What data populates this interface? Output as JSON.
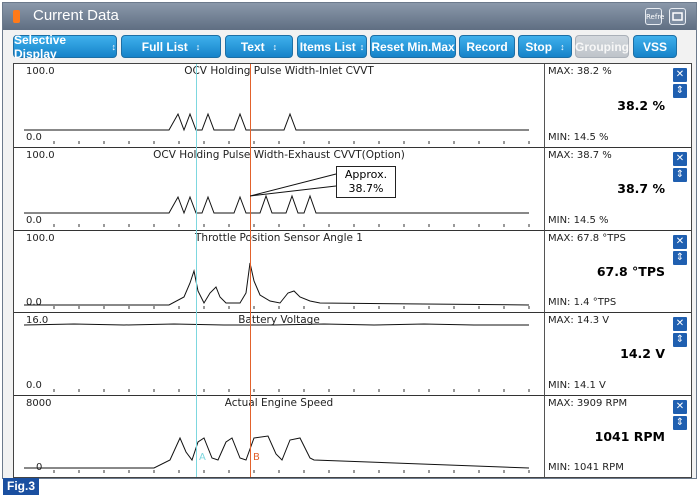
{
  "window": {
    "title": "Current Data",
    "refresh_badge": "Refre",
    "colors": {
      "titlebar": "#6e7d91",
      "button": "#1a8ad6",
      "disabled": "#c5c9ce",
      "cursor_a": "#7dd7df",
      "cursor_b": "#e2622c"
    }
  },
  "toolbar": {
    "selective_display": "Selective Display",
    "full_list": "Full List",
    "text": "Text",
    "items_list": "Items List",
    "reset_minmax": "Reset Min.Max",
    "record": "Record",
    "stop": "Stop",
    "grouping": "Grouping",
    "vss": "VSS"
  },
  "graphs": [
    {
      "title": "OCV Holding Pulse Width-Inlet CVVT",
      "ymax": "100.0",
      "ymin": "0.0",
      "max": "MAX:  38.2 %",
      "min": "MIN:  14.5 %",
      "current": "38.2 %"
    },
    {
      "title": "OCV Holding Pulse Width-Exhaust CVVT(Option)",
      "ymax": "100.0",
      "ymin": "0.0",
      "max": "MAX:  38.7 %",
      "min": "MIN:  14.5 %",
      "current": "38.7 %"
    },
    {
      "title": "Throttle Position Sensor Angle 1",
      "ymax": "100.0",
      "ymin": "0.0",
      "max": "MAX:  67.8 °TPS",
      "min": "MIN:  1.4 °TPS",
      "current": "67.8 °TPS"
    },
    {
      "title": "Battery Voltage",
      "ymax": "16.0",
      "ymin": "0.0",
      "max": "MAX:  14.3 V",
      "min": "MIN:  14.1 V",
      "current": "14.2 V"
    },
    {
      "title": "Actual Engine Speed",
      "ymax": "8000",
      "ymin": "0",
      "max": "MAX:  3909 RPM",
      "min": "MIN:  1041 RPM",
      "current": "1041 RPM"
    }
  ],
  "callout": {
    "line1": "Approx.",
    "line2": "38.7%"
  },
  "cursors": {
    "a": "A",
    "b": "B"
  },
  "figure_tag": "Fig.3",
  "icons": {
    "close": "close-icon",
    "move": "move-updown-icon",
    "refresh": "refresh-icon",
    "minimize": "minimize-icon"
  }
}
